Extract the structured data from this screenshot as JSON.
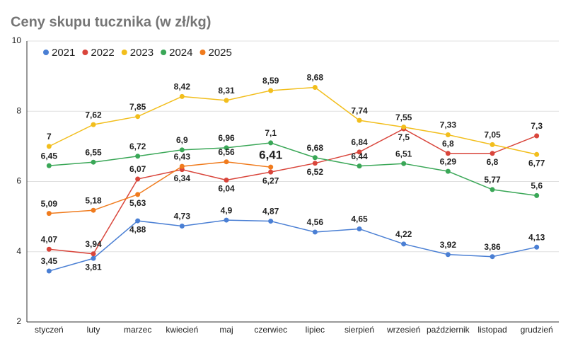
{
  "chart_data": {
    "type": "line",
    "title": "Ceny skupu tucznika (w zł/kg)",
    "categories": [
      "styczeń",
      "luty",
      "marzec",
      "kwiecień",
      "maj",
      "czerwiec",
      "lipiec",
      "sierpień",
      "wrzesień",
      "październik",
      "listopad",
      "grudzień"
    ],
    "ylim": [
      2,
      10
    ],
    "yticks": [
      2,
      4,
      6,
      8,
      10
    ],
    "grid": true,
    "legend": "top-left",
    "emphasized_label": {
      "series": 4,
      "index": 5
    },
    "series": [
      {
        "name": "2021",
        "color": "#4a7fd4",
        "values": [
          3.45,
          3.81,
          4.88,
          4.73,
          4.9,
          4.87,
          4.56,
          4.65,
          4.22,
          3.92,
          3.86,
          4.13
        ],
        "value_labels": [
          "3,45",
          "3,81",
          "4,88",
          "4,73",
          "4,9",
          "4,87",
          "4,56",
          "4,65",
          "4,22",
          "3,92",
          "3,86",
          "4,13"
        ]
      },
      {
        "name": "2022",
        "color": "#d9453b",
        "values": [
          4.07,
          3.94,
          6.07,
          6.34,
          6.04,
          6.27,
          6.52,
          6.84,
          7.5,
          6.8,
          6.8,
          7.3
        ],
        "value_labels": [
          "4,07",
          "3,94",
          "6,07",
          "6,34",
          "6,04",
          "6,27",
          "6,52",
          "6,84",
          "7,5",
          "6,8",
          "6,8",
          "7,3"
        ]
      },
      {
        "name": "2023",
        "color": "#f2be1c",
        "values": [
          7,
          7.62,
          7.85,
          8.42,
          8.31,
          8.59,
          8.68,
          7.74,
          7.55,
          7.33,
          7.05,
          6.77
        ],
        "value_labels": [
          "7",
          "7,62",
          "7,85",
          "8,42",
          "8,31",
          "8,59",
          "8,68",
          "7,74",
          "7,55",
          "7,33",
          "7,05",
          "6,77"
        ]
      },
      {
        "name": "2024",
        "color": "#3aa757",
        "values": [
          6.45,
          6.55,
          6.72,
          6.9,
          6.96,
          7.1,
          6.68,
          6.44,
          6.51,
          6.29,
          5.77,
          5.6
        ],
        "value_labels": [
          "6,45",
          "6,55",
          "6,72",
          "6,9",
          "6,96",
          "7,1",
          "6,68",
          "6,44",
          "6,51",
          "6,29",
          "5,77",
          "5,6"
        ]
      },
      {
        "name": "2025",
        "color": "#f07b1d",
        "values": [
          5.09,
          5.18,
          5.63,
          6.43,
          6.56,
          6.41,
          null,
          null,
          null,
          null,
          null,
          null
        ],
        "value_labels": [
          "5,09",
          "5,18",
          "5,63",
          "6,43",
          "6,56",
          "6,41",
          null,
          null,
          null,
          null,
          null,
          null
        ]
      }
    ]
  }
}
